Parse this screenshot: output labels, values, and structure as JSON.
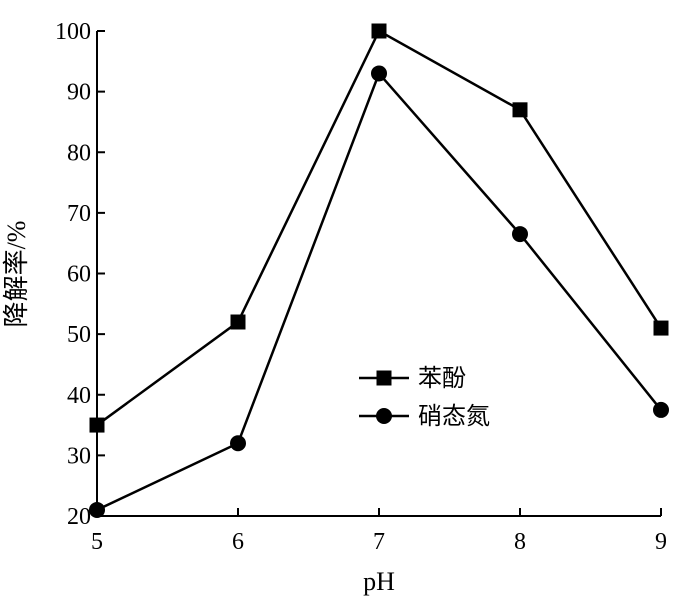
{
  "chart_data": {
    "type": "line",
    "title": "",
    "xlabel": "pH",
    "ylabel": "降解率/%",
    "x": [
      5,
      6,
      7,
      8,
      9
    ],
    "xticks": [
      "5",
      "6",
      "7",
      "8",
      "9"
    ],
    "xlim": [
      5,
      9
    ],
    "ylim": [
      20,
      100
    ],
    "yticks": [
      "20",
      "30",
      "40",
      "50",
      "60",
      "70",
      "80",
      "90",
      "100"
    ],
    "grid": false,
    "legend_position": "center-right",
    "series": [
      {
        "name": "苯酚",
        "marker": "square",
        "color": "#000000",
        "values": [
          35,
          52,
          100,
          87,
          51
        ]
      },
      {
        "name": "硝态氮",
        "marker": "circle",
        "color": "#000000",
        "values": [
          21,
          32,
          93,
          66.5,
          37.5
        ]
      }
    ]
  }
}
